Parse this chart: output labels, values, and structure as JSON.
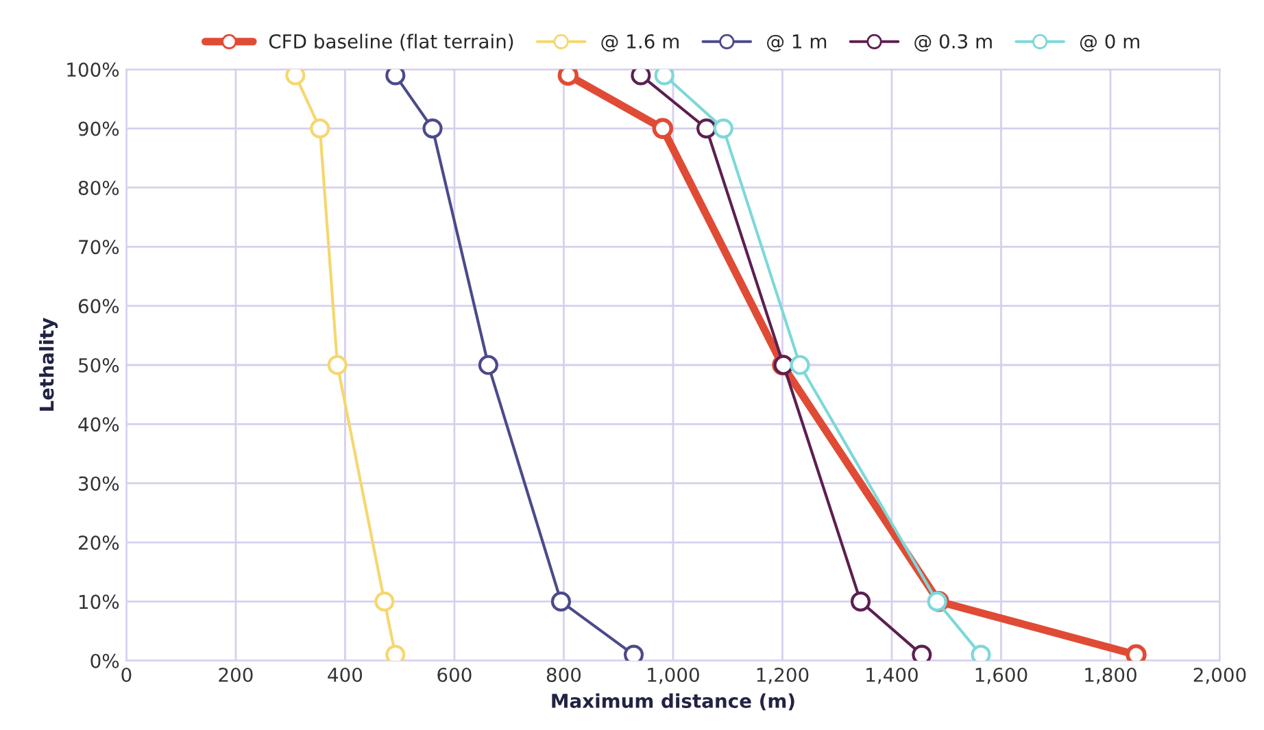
{
  "chart_data": {
    "type": "line",
    "xlabel": "Maximum distance (m)",
    "ylabel": "Lethality",
    "series": [
      {
        "name": "CFD baseline (flat terrain)",
        "color": "#e04b35",
        "x": [
          808,
          981,
          1200,
          1486,
          1847
        ],
        "values": [
          99,
          90,
          50,
          10,
          1
        ]
      },
      {
        "name": "@ 1.6 m",
        "color": "#f5d76e",
        "x": [
          309,
          354,
          386,
          472,
          492
        ],
        "values": [
          99,
          90,
          50,
          10,
          1
        ]
      },
      {
        "name": "@ 1 m",
        "color": "#4b4a8a",
        "x": [
          492,
          560,
          662,
          795,
          928
        ],
        "values": [
          99,
          90,
          50,
          10,
          1
        ]
      },
      {
        "name": "@ 0.3 m",
        "color": "#5c1f50",
        "x": [
          941,
          1061,
          1202,
          1343,
          1455
        ],
        "values": [
          99,
          90,
          50,
          10,
          1
        ]
      },
      {
        "name": "@ 0 m",
        "color": "#7dd8d8",
        "x": [
          984,
          1092,
          1232,
          1483,
          1563
        ],
        "values": [
          99,
          90,
          50,
          10,
          1
        ]
      }
    ],
    "xlim": [
      0,
      2000
    ],
    "xticks": [
      0,
      200,
      400,
      600,
      800,
      {
        "value": 1000,
        "label": "1,000"
      },
      {
        "value": 1200,
        "label": "1,200"
      },
      {
        "value": 1400,
        "label": "1,400"
      },
      {
        "value": 1600,
        "label": "1,600"
      },
      {
        "value": 1800,
        "label": "1,800"
      },
      {
        "value": 2000,
        "label": "2,000"
      }
    ],
    "ylim": [
      0,
      100
    ],
    "yticks": [
      {
        "value": 0,
        "label": "0%"
      },
      {
        "value": 10,
        "label": "10%"
      },
      {
        "value": 20,
        "label": "20%"
      },
      {
        "value": 30,
        "label": "30%"
      },
      {
        "value": 40,
        "label": "40%"
      },
      {
        "value": 50,
        "label": "50%"
      },
      {
        "value": 60,
        "label": "60%"
      },
      {
        "value": 70,
        "label": "70%"
      },
      {
        "value": 80,
        "label": "80%"
      },
      {
        "value": 90,
        "label": "90%"
      },
      {
        "value": 100,
        "label": "100%"
      }
    ],
    "grid": true,
    "legend": "top",
    "marker": "circle",
    "line_style": "solid"
  }
}
